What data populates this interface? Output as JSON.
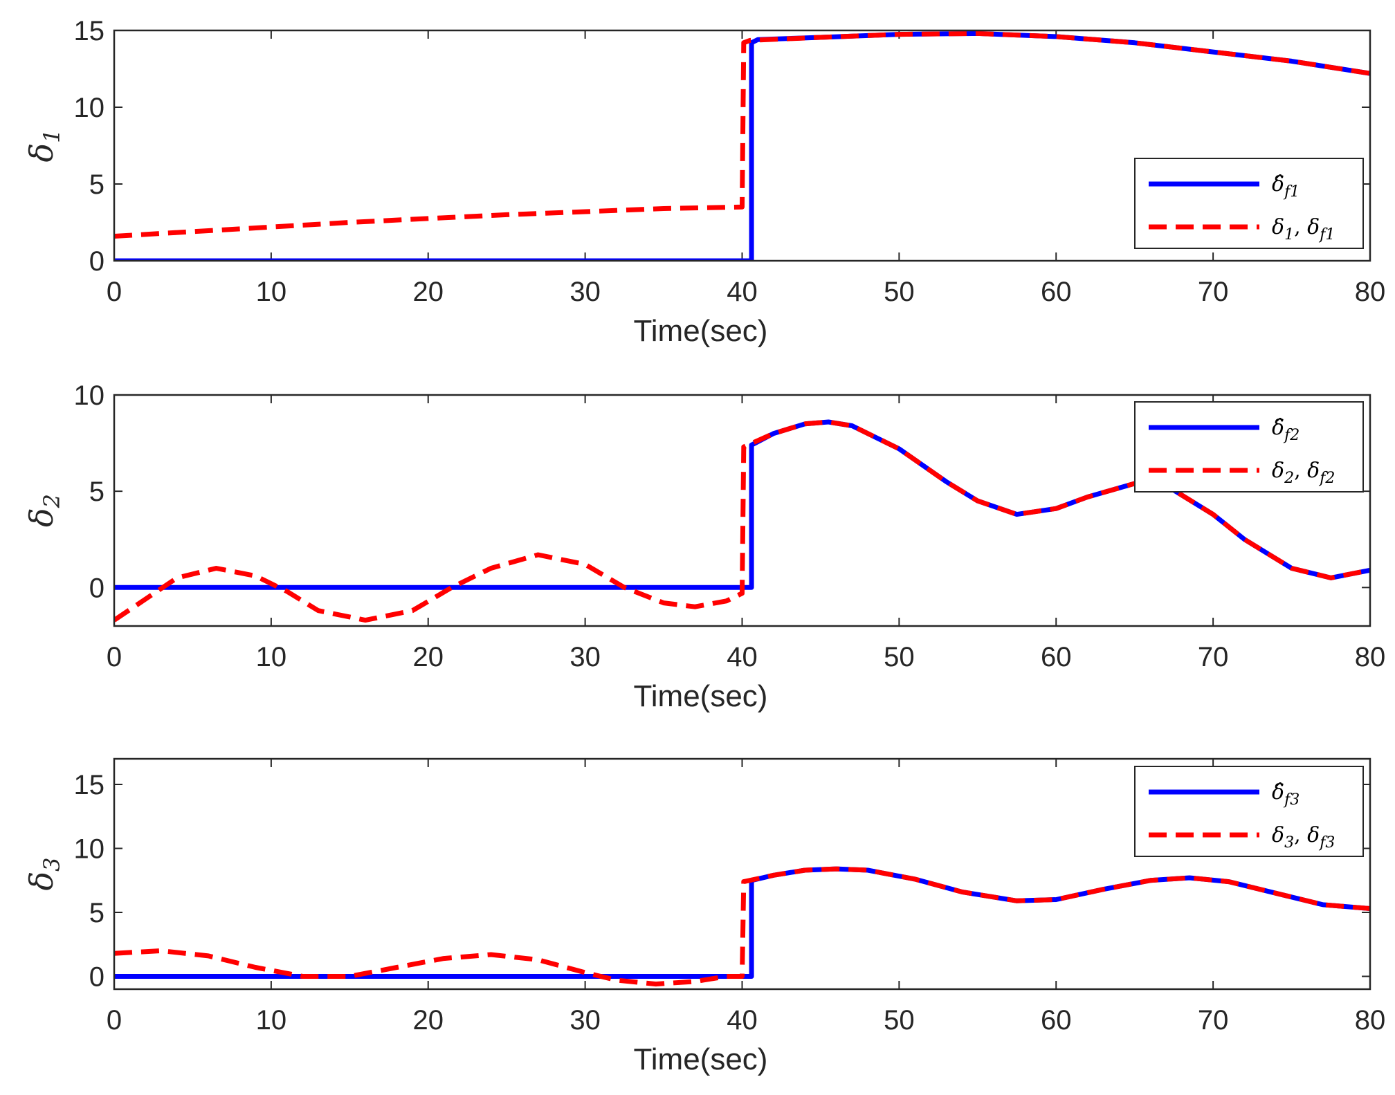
{
  "colors": {
    "estimate": "#0000ff",
    "actual": "#ff0000",
    "axis": "#262626"
  },
  "chart_data": [
    {
      "type": "line",
      "ylabel_base": "δ",
      "ylabel_sub": "1",
      "xlabel": "Time(sec)",
      "xlim": [
        0,
        80
      ],
      "ylim": [
        0,
        15
      ],
      "xticks": [
        "0",
        "10",
        "20",
        "30",
        "40",
        "50",
        "60",
        "70",
        "80"
      ],
      "yticks": [
        "0",
        "5",
        "10",
        "15"
      ],
      "legend_position": "bottom-right",
      "series": [
        {
          "name": "δ̂_f1",
          "legend_base": "δ̂",
          "legend_sub": "f1",
          "style": "solid",
          "x": [
            0,
            40.6,
            40.6,
            40.6,
            41,
            45,
            50,
            55,
            60,
            65,
            70,
            75,
            80
          ],
          "y": [
            0,
            0,
            7,
            14.2,
            14.4,
            14.55,
            14.75,
            14.8,
            14.6,
            14.2,
            13.6,
            13.0,
            12.2
          ]
        },
        {
          "name": "δ1, δf1",
          "legend_base": "δ",
          "legend_sub": "1",
          "legend_base2": "δ",
          "legend_sub2": "f1",
          "style": "dashed",
          "x": [
            0,
            5,
            10,
            15,
            20,
            25,
            30,
            35,
            40,
            40.1,
            40.5,
            45,
            50,
            55,
            60,
            65,
            70,
            75,
            80
          ],
          "y": [
            1.6,
            1.9,
            2.2,
            2.5,
            2.75,
            3.0,
            3.2,
            3.4,
            3.5,
            14.2,
            14.35,
            14.55,
            14.75,
            14.8,
            14.6,
            14.2,
            13.6,
            13.0,
            12.2
          ]
        }
      ]
    },
    {
      "type": "line",
      "ylabel_base": "δ",
      "ylabel_sub": "2",
      "xlabel": "Time(sec)",
      "xlim": [
        0,
        80
      ],
      "ylim": [
        -2,
        10
      ],
      "xticks": [
        "0",
        "10",
        "20",
        "30",
        "40",
        "50",
        "60",
        "70",
        "80"
      ],
      "yticks": [
        "0",
        "5",
        "10"
      ],
      "legend_position": "top-right",
      "series": [
        {
          "name": "δ̂_f2",
          "legend_base": "δ̂",
          "legend_sub": "f2",
          "style": "solid",
          "x": [
            0,
            40.6,
            40.6,
            40.6,
            42,
            44,
            45.5,
            47,
            50,
            53,
            55,
            57.5,
            60,
            62,
            65,
            67,
            70,
            72,
            75,
            77.5,
            80
          ],
          "y": [
            0,
            0,
            4,
            7.4,
            8.0,
            8.5,
            8.6,
            8.4,
            7.2,
            5.5,
            4.5,
            3.8,
            4.1,
            4.7,
            5.4,
            5.3,
            3.8,
            2.5,
            1.0,
            0.5,
            0.9
          ]
        },
        {
          "name": "δ2, δf2",
          "legend_base": "δ",
          "legend_sub": "2",
          "legend_base2": "δ",
          "legend_sub2": "f2",
          "style": "dashed",
          "x": [
            0,
            2,
            4,
            6.5,
            9,
            11,
            13,
            16,
            19,
            21.5,
            24,
            27,
            30,
            32.5,
            35,
            37,
            39,
            40,
            40.1,
            42,
            44,
            45.5,
            47,
            50,
            53,
            55,
            57.5,
            60,
            62,
            65,
            67,
            70,
            72,
            75,
            77.5,
            80
          ],
          "y": [
            -1.7,
            -0.6,
            0.5,
            1.0,
            0.6,
            -0.2,
            -1.2,
            -1.7,
            -1.2,
            0.0,
            1.0,
            1.7,
            1.2,
            0.0,
            -0.8,
            -1.0,
            -0.7,
            -0.3,
            7.3,
            8.0,
            8.5,
            8.6,
            8.4,
            7.2,
            5.5,
            4.5,
            3.8,
            4.1,
            4.7,
            5.4,
            5.3,
            3.8,
            2.5,
            1.0,
            0.5,
            0.9
          ]
        }
      ]
    },
    {
      "type": "line",
      "ylabel_base": "δ",
      "ylabel_sub": "3",
      "xlabel": "Time(sec)",
      "xlim": [
        0,
        80
      ],
      "ylim": [
        -1,
        17
      ],
      "xticks": [
        "0",
        "10",
        "20",
        "30",
        "40",
        "50",
        "60",
        "70",
        "80"
      ],
      "yticks": [
        "0",
        "5",
        "10",
        "15"
      ],
      "legend_position": "top-right",
      "series": [
        {
          "name": "δ̂_f3",
          "legend_base": "δ̂",
          "legend_sub": "f3",
          "style": "solid",
          "x": [
            0,
            40.6,
            40.6,
            40.6,
            42,
            44,
            46,
            48,
            51,
            54,
            57.5,
            60,
            63,
            66,
            68.5,
            71,
            74,
            77,
            80
          ],
          "y": [
            0,
            0,
            4,
            7.5,
            7.9,
            8.3,
            8.4,
            8.3,
            7.6,
            6.6,
            5.9,
            6.0,
            6.8,
            7.5,
            7.7,
            7.4,
            6.5,
            5.6,
            5.3
          ]
        },
        {
          "name": "δ3, δf3",
          "legend_base": "δ",
          "legend_sub": "3",
          "legend_base2": "δ",
          "legend_sub2": "f3",
          "style": "dashed",
          "x": [
            0,
            3,
            6,
            9,
            12,
            15,
            18,
            21,
            24,
            27,
            30,
            32,
            34.5,
            37,
            39,
            40,
            40.1,
            42,
            44,
            46,
            48,
            51,
            54,
            57.5,
            60,
            63,
            66,
            68.5,
            71,
            74,
            77,
            80
          ],
          "y": [
            1.8,
            2.0,
            1.6,
            0.7,
            0.0,
            0.0,
            0.7,
            1.4,
            1.7,
            1.3,
            0.3,
            -0.3,
            -0.6,
            -0.4,
            0.0,
            0.0,
            7.4,
            7.9,
            8.3,
            8.4,
            8.3,
            7.6,
            6.6,
            5.9,
            6.0,
            6.8,
            7.5,
            7.7,
            7.4,
            6.5,
            5.6,
            5.3
          ]
        }
      ]
    }
  ]
}
